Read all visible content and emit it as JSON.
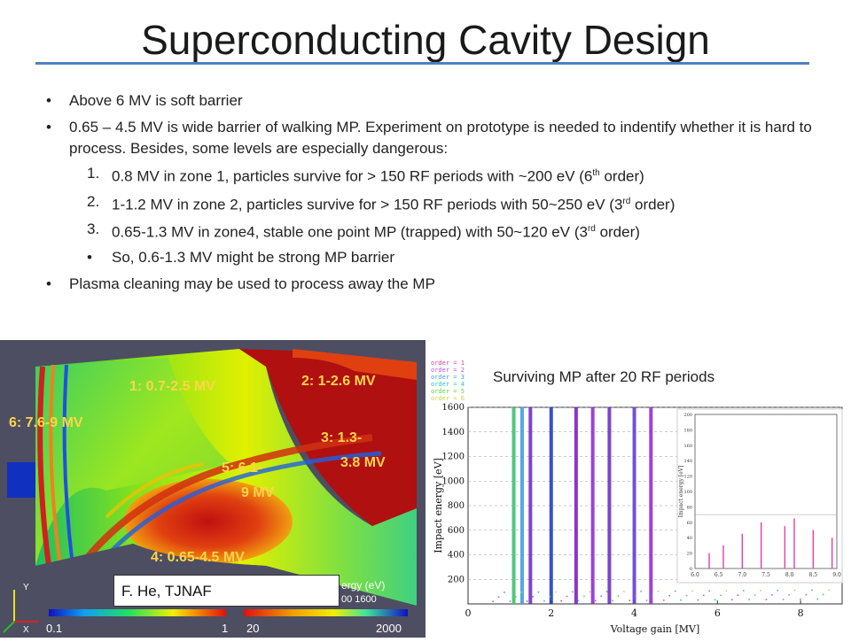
{
  "slide": {
    "title": "Superconducting Cavity Design",
    "bullets": [
      "Above 6 MV is soft barrier",
      "0.65 – 4.5 MV is wide barrier of walking MP. Experiment on prototype is needed to indentify whether it is hard to process. Besides, some levels are especially dangerous:",
      "Plasma cleaning may be used to process away the MP"
    ],
    "sub_items": [
      {
        "num": "1.",
        "pre": "0.8 MV in zone 1, particles survive for > 150 RF periods with ~200 eV (6",
        "sup": "th",
        "post": " order)"
      },
      {
        "num": "2.",
        "pre": "1-1.2 MV in zone 2, particles survive for > 150 RF periods with 50~250 eV (3",
        "sup": "rd",
        "post": " order)"
      },
      {
        "num": "3.",
        "pre": "0.65-1.3 MV in zone4, stable one point MP (trapped) with 50~120 eV (3",
        "sup": "rd",
        "post": " order)"
      }
    ],
    "sub_bullet": "So, 0.6-1.3 MV might be strong MP barrier",
    "bullet_glyph": "•"
  },
  "simulation": {
    "zone_labels": {
      "z1": "1: 0.7-2.5 MV",
      "z2": "2: 1-2.6 MV",
      "z3a": "3: 1.3-",
      "z3b": "3.8 MV",
      "z4": "4: 0.65-4.5 MV",
      "z5a": "5: 6.1-",
      "z5b": "9 MV",
      "z6": "6: 7.6-9 MV"
    },
    "credit": "F. He, TJNAF",
    "scale_left": {
      "min": "0.1",
      "max": "1"
    },
    "scale_right": {
      "min": "20",
      "max": "2000",
      "label": "ergy (eV)",
      "ticks": "00   1600"
    },
    "axis_y": "Y",
    "axis_x": "X"
  },
  "chart_data": {
    "type": "scatter",
    "title": "Surviving MP after 20 RF periods",
    "xlabel": "Voltage gain [MV]",
    "ylabel": "Impact energy [eV]",
    "xlim": [
      0,
      9
    ],
    "ylim": [
      0,
      1600
    ],
    "x_ticks": [
      "0",
      "2",
      "4",
      "6",
      "8"
    ],
    "y_ticks": [
      "200",
      "400",
      "600",
      "800",
      "1000",
      "1200",
      "1400",
      "1600"
    ],
    "legend": [
      "order = 1",
      "order = 2",
      "order = 3",
      "order = 4",
      "order = 5",
      "order = 6"
    ],
    "legend_colors": [
      "#e0409a",
      "#c050e0",
      "#40a0e0",
      "#30c0c0",
      "#60d040",
      "#d0d040"
    ],
    "stripes": [
      {
        "x": 1.1,
        "color": "#40c070"
      },
      {
        "x": 1.3,
        "color": "#40a0e0"
      },
      {
        "x": 1.5,
        "color": "#7030c0"
      },
      {
        "x": 2.0,
        "color": "#2040c0"
      },
      {
        "x": 2.6,
        "color": "#8020c0"
      },
      {
        "x": 3.0,
        "color": "#9030d0"
      },
      {
        "x": 3.4,
        "color": "#7030c0"
      },
      {
        "x": 4.0,
        "color": "#6040d0"
      },
      {
        "x": 4.4,
        "color": "#9030d0"
      }
    ],
    "inset": {
      "xlabel": "",
      "ylabel": "Impact energy [eV]",
      "xlim": [
        6.0,
        9.0
      ],
      "ylim": [
        0,
        200
      ],
      "x_ticks": [
        "6.0",
        "6.5",
        "7.0",
        "7.5",
        "8.0",
        "8.5",
        "9.0"
      ],
      "y_ticks": [
        "0",
        "20",
        "40",
        "60",
        "80",
        "100",
        "120",
        "140",
        "160",
        "180",
        "200"
      ],
      "spikes": [
        {
          "x": 6.3,
          "y": 20
        },
        {
          "x": 6.6,
          "y": 30
        },
        {
          "x": 7.0,
          "y": 45
        },
        {
          "x": 7.4,
          "y": 60
        },
        {
          "x": 7.9,
          "y": 55
        },
        {
          "x": 8.1,
          "y": 65
        },
        {
          "x": 8.5,
          "y": 50
        },
        {
          "x": 8.9,
          "y": 40
        }
      ]
    }
  }
}
